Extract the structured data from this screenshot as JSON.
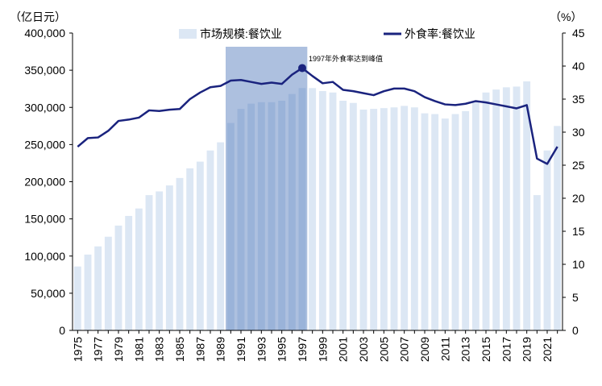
{
  "chart_data": {
    "type": "bar+line",
    "title": "",
    "left_unit": "（亿日元）",
    "right_unit": "（%）",
    "ylim_left": [
      0,
      400000
    ],
    "ylim_right": [
      0,
      45
    ],
    "yticks_left": [
      "0",
      "50,000",
      "100,000",
      "150,000",
      "200,000",
      "250,000",
      "300,000",
      "350,000",
      "400,000"
    ],
    "yticks_right": [
      "0",
      "5",
      "10",
      "15",
      "20",
      "25",
      "30",
      "35",
      "40",
      "45"
    ],
    "x": [
      1975,
      1976,
      1977,
      1978,
      1979,
      1980,
      1981,
      1982,
      1983,
      1984,
      1985,
      1986,
      1987,
      1988,
      1989,
      1990,
      1991,
      1992,
      1993,
      1994,
      1995,
      1996,
      1997,
      1998,
      1999,
      2000,
      2001,
      2002,
      2003,
      2004,
      2005,
      2006,
      2007,
      2008,
      2009,
      2010,
      2011,
      2012,
      2013,
      2014,
      2015,
      2016,
      2017,
      2018,
      2019,
      2020,
      2021,
      2022
    ],
    "x_tick_labels": [
      "1975",
      "1977",
      "1979",
      "1981",
      "1983",
      "1985",
      "1987",
      "1989",
      "1991",
      "1993",
      "1995",
      "1997",
      "1999",
      "2001",
      "2003",
      "2005",
      "2007",
      "2009",
      "2011",
      "2013",
      "2015",
      "2017",
      "2019",
      "2021"
    ],
    "series": [
      {
        "name": "市场规模:餐饮业",
        "type": "bar",
        "axis": "left",
        "color": "#dce7f4",
        "values": [
          86000,
          102000,
          113000,
          126000,
          141000,
          154000,
          164000,
          182000,
          187000,
          195000,
          205000,
          218000,
          227000,
          242000,
          253000,
          279000,
          298000,
          305000,
          307000,
          307000,
          309000,
          318000,
          326000,
          326000,
          322000,
          320000,
          309000,
          306000,
          297000,
          298000,
          299000,
          300000,
          302000,
          300000,
          292000,
          291000,
          285000,
          291000,
          295000,
          308000,
          320000,
          324000,
          327000,
          328000,
          335000,
          182000,
          242000,
          275000
        ]
      },
      {
        "name": "外食率:餐饮业",
        "type": "line",
        "axis": "right",
        "color": "#1a237e",
        "values": [
          27.8,
          29.1,
          29.2,
          30.2,
          31.7,
          31.9,
          32.2,
          33.3,
          33.2,
          33.4,
          33.5,
          35.0,
          36.0,
          36.8,
          37.0,
          37.8,
          37.9,
          37.6,
          37.3,
          37.5,
          37.3,
          38.7,
          39.7,
          38.5,
          37.4,
          37.6,
          36.4,
          36.2,
          35.9,
          35.6,
          36.2,
          36.6,
          36.6,
          36.2,
          35.3,
          34.7,
          34.2,
          34.1,
          34.3,
          34.7,
          34.5,
          34.2,
          33.9,
          33.6,
          34.1,
          26.0,
          25.2,
          27.8
        ]
      }
    ],
    "highlight_range": [
      1990,
      1997
    ],
    "annotation": {
      "x": 1997,
      "label": "1997年外食率达到峰值"
    },
    "legend_placement": "top",
    "grid": false
  }
}
